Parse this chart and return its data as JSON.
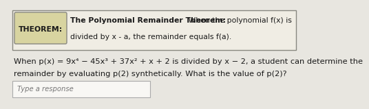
{
  "bg_color": "#d4d0c8",
  "page_bg": "#e8e6e0",
  "theorem_box_bg": "#f0ede4",
  "theorem_box_edge": "#888880",
  "theorem_label_bg": "#d8d4a0",
  "theorem_label_edge": "#888880",
  "theorem_label_text": "THEOREM:",
  "theorem_title": "The Polynomial Remainder Theorem:",
  "theorem_line1_rest": " When the polynomial f(x) is",
  "theorem_line2": "divided by x - a, the remainder equals f(a).",
  "main_text_line1": "When p(x) = 9x⁴ − 45x³ + 37x² + x + 2 is divided by x − 2, a student can determine the",
  "main_text_line2": "remainder by evaluating p(2) synthetically. What is the value of p(2)?",
  "response_box_text": "Type a response",
  "text_color": "#1a1a1a",
  "light_text_color": "#777777",
  "font_size_theorem": 7.8,
  "font_size_main": 8.2,
  "font_size_response": 7.2
}
